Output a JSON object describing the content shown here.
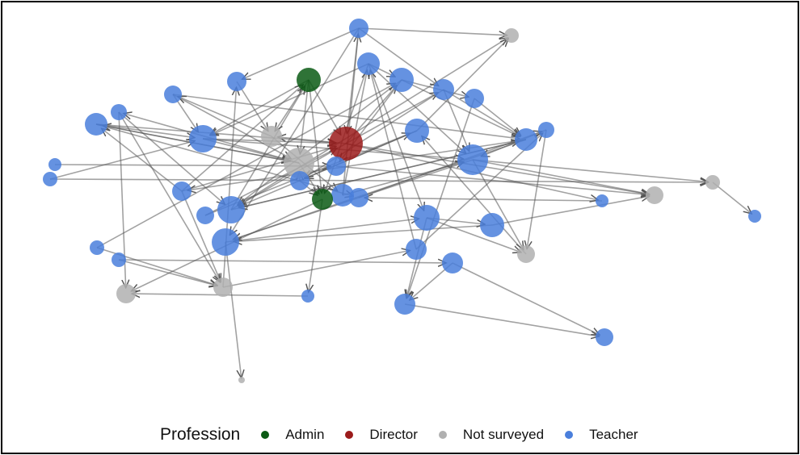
{
  "legend": {
    "title": "Profession",
    "items": [
      {
        "label": "Admin",
        "color": "#0b5a14"
      },
      {
        "label": "Director",
        "color": "#9b1b1b"
      },
      {
        "label": "Not surveyed",
        "color": "#b0b0b0"
      },
      {
        "label": "Teacher",
        "color": "#4a7fdc"
      }
    ]
  }
}
